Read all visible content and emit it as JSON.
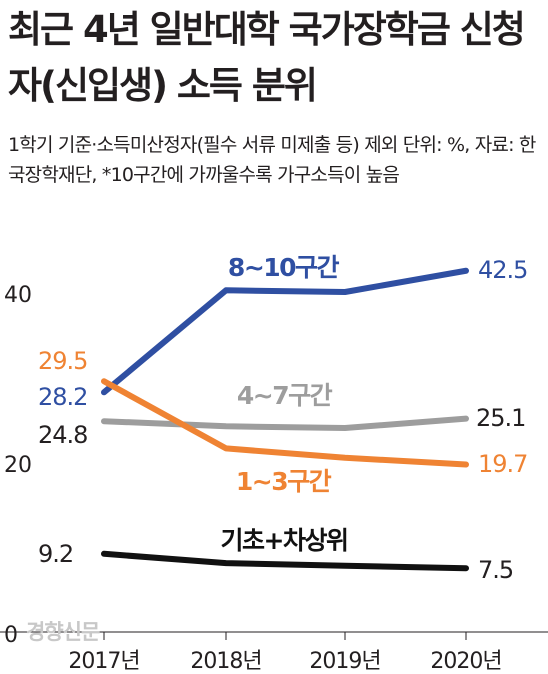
{
  "chart_data": {
    "type": "line",
    "title": "최근 4년 일반대학 국가장학금 신청자(신입생) 소득 분위",
    "subtitle": "1학기 기준·소득미산정자(필수 서류 미제출 등) 제외 단위: %, 자료: 한국장학재단, *10구간에 가까울수록 가구소득이 높음",
    "x": [
      "2017년",
      "2018년",
      "2019년",
      "2020년"
    ],
    "y_ticks": [
      0,
      20,
      40
    ],
    "ylim": [
      0,
      44
    ],
    "grid": false,
    "series": [
      {
        "name": "8~10구간",
        "color": "#2f4fa2",
        "values": [
          28.2,
          40.2,
          40.0,
          42.5
        ],
        "labels": [
          "28.2",
          "",
          "",
          "42.5"
        ]
      },
      {
        "name": "4~7구간",
        "color": "#9d9d9d",
        "values": [
          24.8,
          24.2,
          24.0,
          25.1
        ],
        "labels": [
          "24.8",
          "",
          "",
          "25.1"
        ]
      },
      {
        "name": "1~3구간",
        "color": "#ef8333",
        "values": [
          29.5,
          21.6,
          20.5,
          19.7
        ],
        "labels": [
          "29.5",
          "",
          "",
          "19.7"
        ]
      },
      {
        "name": "기초+차상위",
        "color": "#111111",
        "values": [
          9.2,
          8.1,
          7.8,
          7.5
        ],
        "labels": [
          "9.2",
          "",
          "",
          "7.5"
        ]
      }
    ]
  },
  "credit": "경향신문"
}
